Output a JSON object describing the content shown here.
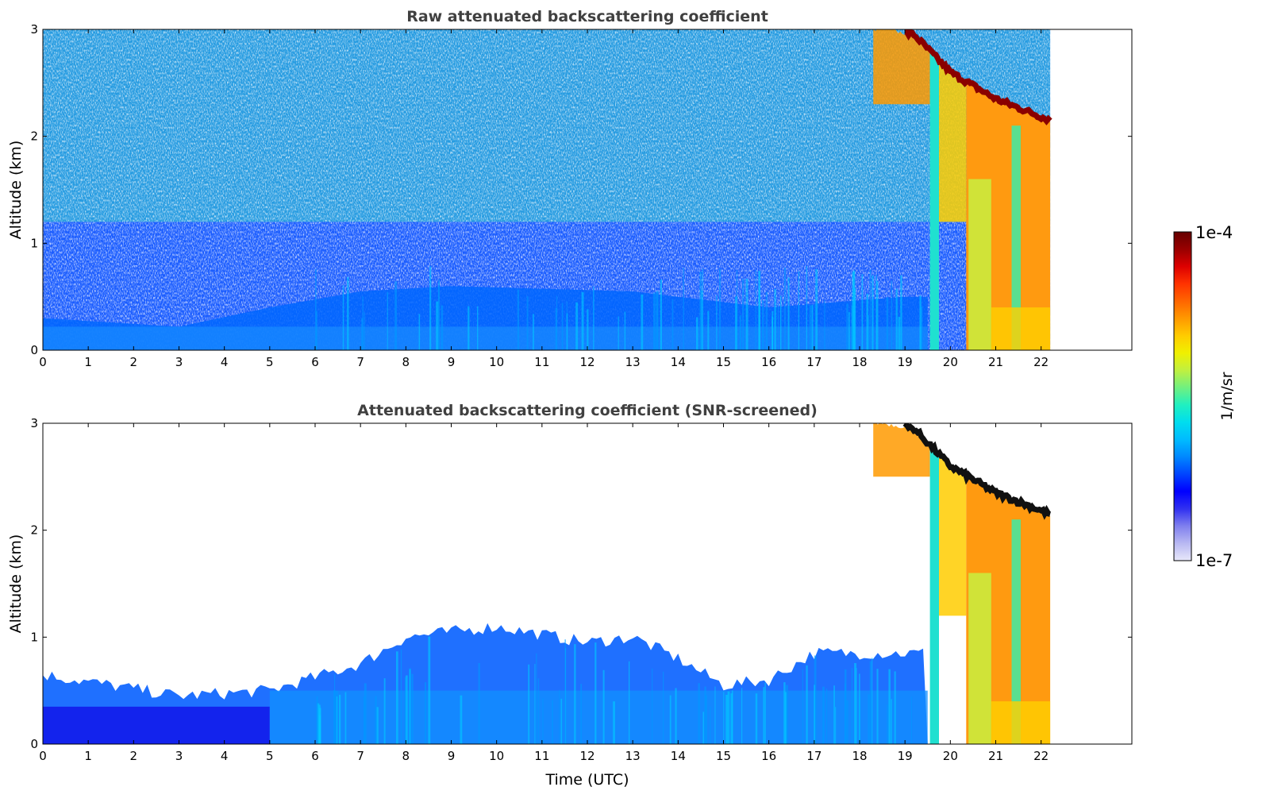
{
  "chart_data": [
    {
      "type": "heatmap",
      "title": "Raw attenuated backscattering coefficient",
      "xlabel": "",
      "ylabel": "Altitude (km)",
      "xlim": [
        0,
        24
      ],
      "ylim": [
        0,
        3
      ],
      "xticks": [
        "0",
        "1",
        "2",
        "3",
        "4",
        "5",
        "6",
        "7",
        "8",
        "9",
        "10",
        "11",
        "12",
        "13",
        "14",
        "15",
        "16",
        "17",
        "18",
        "19",
        "20",
        "21",
        "22"
      ],
      "yticks": [
        "0",
        "1",
        "2",
        "3"
      ],
      "data_end_hour": 22.2,
      "screened": false,
      "features": {
        "surface_layer_top_km": [
          [
            0,
            0.3
          ],
          [
            3,
            0.22
          ],
          [
            5,
            0.4
          ],
          [
            7,
            0.55
          ],
          [
            9,
            0.6
          ],
          [
            13,
            0.55
          ],
          [
            16,
            0.4
          ],
          [
            19,
            0.5
          ]
        ],
        "cloud_top_km": [
          [
            18.5,
            3.0
          ],
          [
            19.2,
            2.95
          ],
          [
            20.0,
            2.6
          ],
          [
            21.0,
            2.35
          ],
          [
            22.2,
            2.15
          ]
        ],
        "rain_columns_hours": [
          [
            19.55,
            19.75
          ],
          [
            20.35,
            22.2
          ]
        ]
      }
    },
    {
      "type": "heatmap",
      "title": "Attenuated backscattering coefficient (SNR-screened)",
      "xlabel": "Time (UTC)",
      "ylabel": "Altitude (km)",
      "xlim": [
        0,
        24
      ],
      "ylim": [
        0,
        3
      ],
      "xticks": [
        "0",
        "1",
        "2",
        "3",
        "4",
        "5",
        "6",
        "7",
        "8",
        "9",
        "10",
        "11",
        "12",
        "13",
        "14",
        "15",
        "16",
        "17",
        "18",
        "19",
        "20",
        "21",
        "22"
      ],
      "yticks": [
        "0",
        "1",
        "2",
        "3"
      ],
      "data_end_hour": 22.2,
      "screened": true,
      "features": {
        "boundary_layer_top_km": [
          [
            0,
            0.65
          ],
          [
            3,
            0.45
          ],
          [
            5,
            0.5
          ],
          [
            7,
            0.75
          ],
          [
            8,
            1.0
          ],
          [
            10,
            1.1
          ],
          [
            12,
            0.95
          ],
          [
            13,
            1.0
          ],
          [
            14,
            0.8
          ],
          [
            15,
            0.55
          ],
          [
            16,
            0.6
          ],
          [
            17,
            0.85
          ],
          [
            19,
            0.85
          ]
        ],
        "cloud_top_km": [
          [
            18.5,
            3.0
          ],
          [
            19.2,
            2.95
          ],
          [
            20.0,
            2.6
          ],
          [
            21.0,
            2.35
          ],
          [
            22.2,
            2.15
          ]
        ],
        "rain_columns_hours": [
          [
            19.55,
            19.75
          ],
          [
            20.35,
            22.2
          ]
        ]
      }
    }
  ],
  "colorbar": {
    "label": "1/m/sr",
    "max_label": "1e-4",
    "min_label": "1e-7",
    "colors": [
      "#e8e8fa",
      "#b8b8f2",
      "#8080ee",
      "#3030f0",
      "#0000ff",
      "#0044ff",
      "#0088ff",
      "#00bbff",
      "#00ddee",
      "#20f0c0",
      "#70f080",
      "#c0f040",
      "#f0f000",
      "#ffcc00",
      "#ff9900",
      "#ff6600",
      "#ff3300",
      "#dd0000",
      "#990000",
      "#660000"
    ]
  }
}
